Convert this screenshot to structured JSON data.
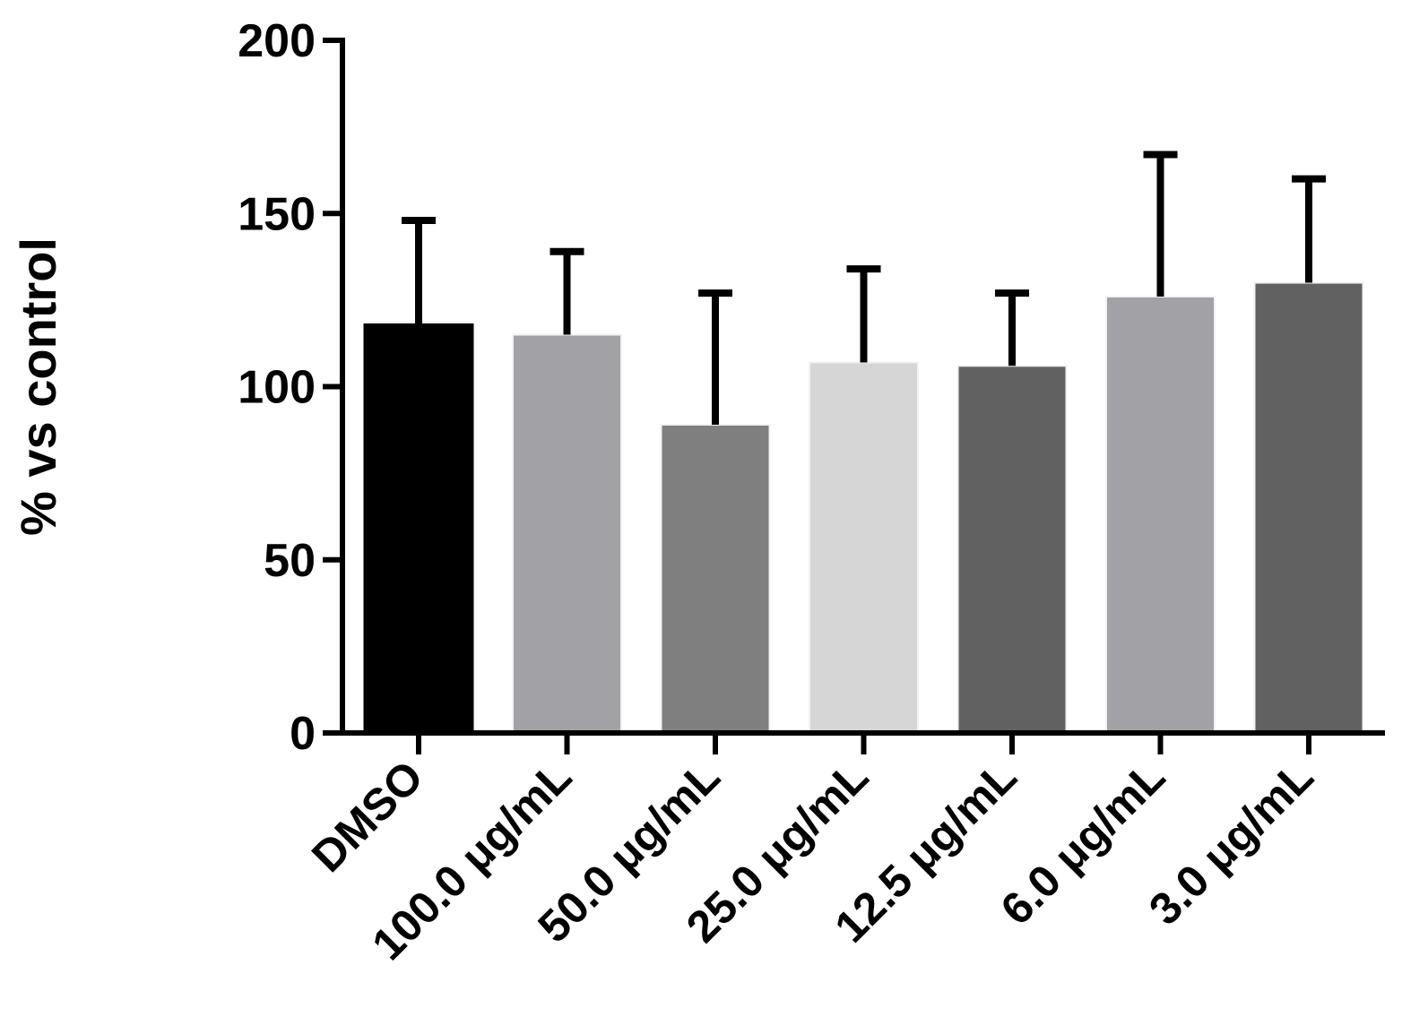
{
  "chart_data": {
    "type": "bar",
    "title": "",
    "xlabel": "",
    "ylabel": "% vs control",
    "ylim": [
      0,
      200
    ],
    "yticks": [
      0,
      50,
      100,
      150,
      200
    ],
    "categories": [
      "DMSO",
      "100.0 μg/mL",
      "50.0 μg/mL",
      "25.0 μg/mL",
      "12.5 μg/mL",
      "6.0 μg/mL",
      "3.0 μg/mL"
    ],
    "values": [
      118,
      115,
      89,
      107,
      106,
      126,
      130
    ],
    "error_plus": [
      30,
      24,
      38,
      27,
      21,
      41,
      30
    ],
    "bar_colors": [
      "#000000",
      "#a2a2a6",
      "#7f7f7f",
      "#d6d6d6",
      "#616161",
      "#a2a2a6",
      "#616161"
    ],
    "grid": false,
    "legend": "none"
  }
}
